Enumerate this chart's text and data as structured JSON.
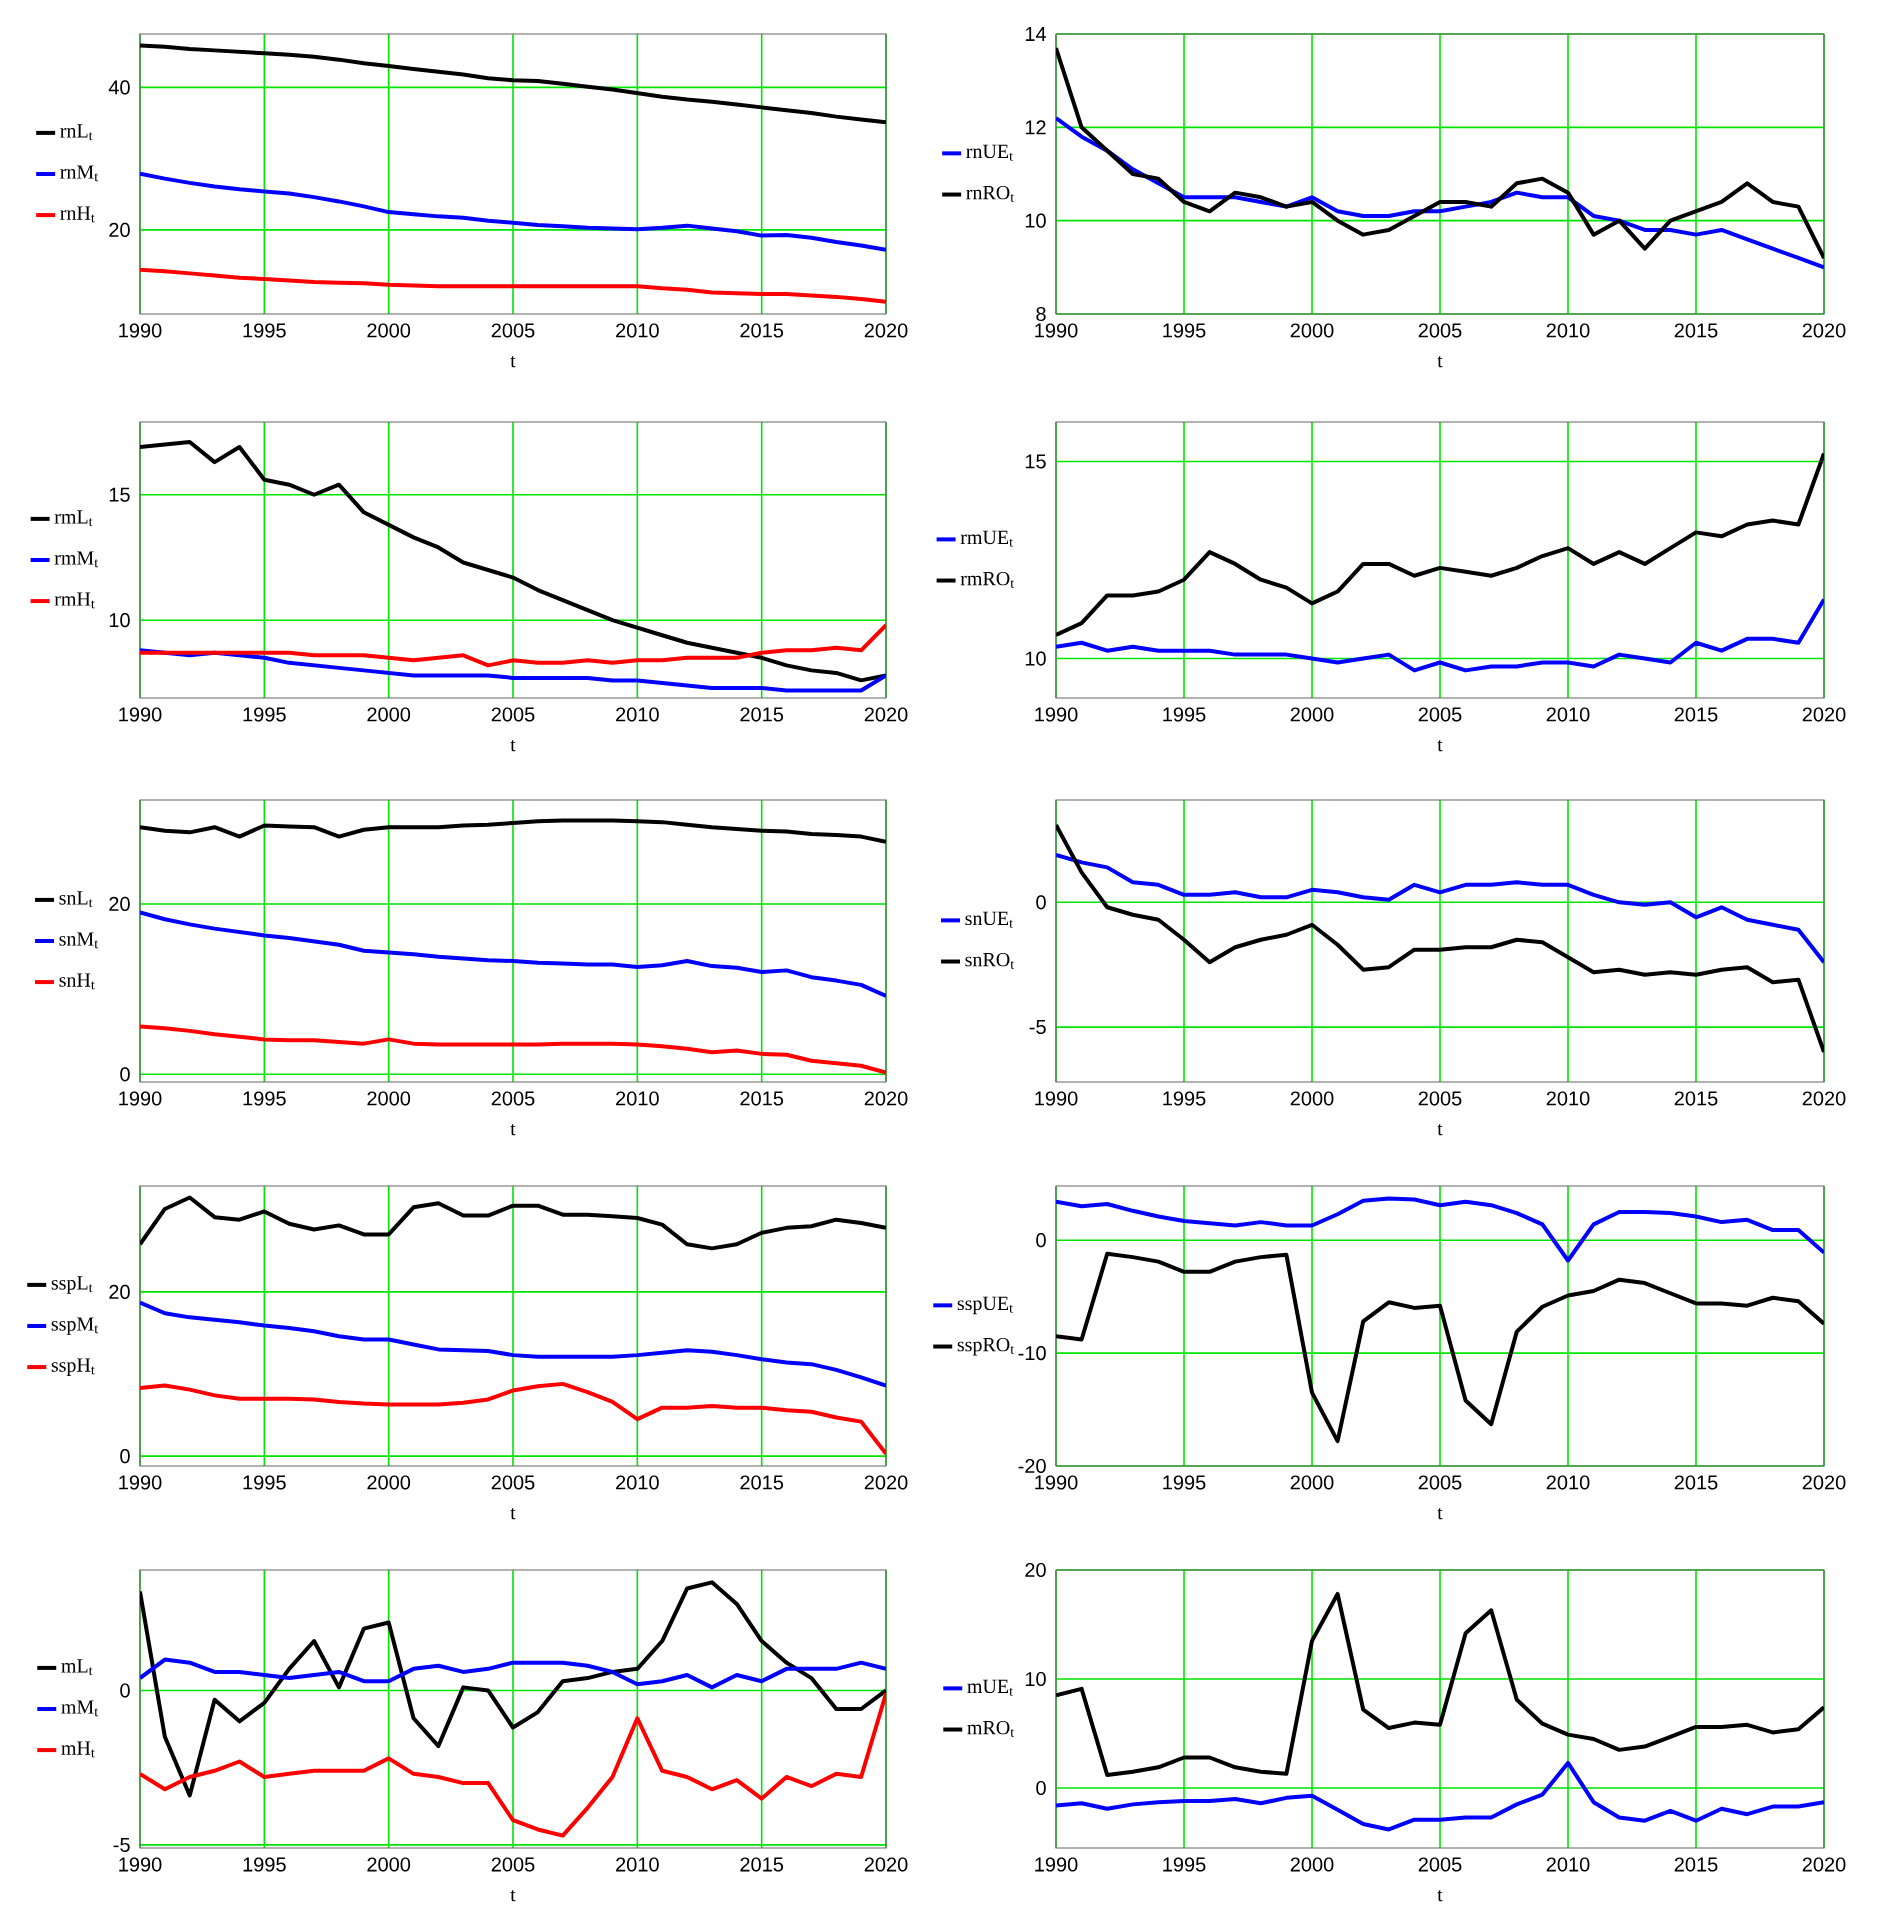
{
  "chart_data": [
    {
      "type": "line",
      "x": [
        1990,
        1991,
        1992,
        1993,
        1994,
        1995,
        1996,
        1997,
        1998,
        1999,
        2000,
        2001,
        2002,
        2003,
        2004,
        2005,
        2006,
        2007,
        2008,
        2009,
        2010,
        2011,
        2012,
        2013,
        2014,
        2015,
        2016,
        2017,
        2018,
        2019,
        2020
      ],
      "xlim": [
        1990,
        2020
      ],
      "xticks": [
        1990,
        1995,
        2000,
        2005,
        2010,
        2015,
        2020
      ],
      "ylim": [
        8.2,
        47.5
      ],
      "yticks": [
        20,
        40
      ],
      "xlabel": "t",
      "grid": true,
      "legend": "left",
      "series": [
        {
          "name": "rnL$_{t}$",
          "color": "#000000",
          "values": [
            45.9,
            45.7,
            45.4,
            45.2,
            45.0,
            44.8,
            44.6,
            44.3,
            43.9,
            43.4,
            43.0,
            42.6,
            42.2,
            41.8,
            41.3,
            41.0,
            40.9,
            40.5,
            40.1,
            39.7,
            39.2,
            38.7,
            38.3,
            38.0,
            37.6,
            37.2,
            36.8,
            36.4,
            35.9,
            35.5,
            35.1
          ]
        },
        {
          "name": "rnM$_{t}$",
          "color": "#0000ff",
          "values": [
            27.9,
            27.2,
            26.6,
            26.1,
            25.7,
            25.4,
            25.1,
            24.6,
            24.0,
            23.3,
            22.5,
            22.2,
            21.9,
            21.7,
            21.3,
            21.0,
            20.7,
            20.5,
            20.3,
            20.2,
            20.1,
            20.3,
            20.6,
            20.2,
            19.8,
            19.2,
            19.3,
            18.9,
            18.3,
            17.8,
            17.2
          ]
        },
        {
          "name": "rnH$_{t}$",
          "color": "#ff0000",
          "values": [
            14.4,
            14.2,
            13.9,
            13.6,
            13.3,
            13.1,
            12.9,
            12.7,
            12.6,
            12.5,
            12.3,
            12.2,
            12.1,
            12.1,
            12.1,
            12.1,
            12.1,
            12.1,
            12.1,
            12.1,
            12.1,
            11.8,
            11.6,
            11.2,
            11.1,
            11.0,
            11.0,
            10.8,
            10.6,
            10.3,
            9.9
          ]
        }
      ]
    },
    {
      "type": "line",
      "x": [
        1990,
        1991,
        1992,
        1993,
        1994,
        1995,
        1996,
        1997,
        1998,
        1999,
        2000,
        2001,
        2002,
        2003,
        2004,
        2005,
        2006,
        2007,
        2008,
        2009,
        2010,
        2011,
        2012,
        2013,
        2014,
        2015,
        2016,
        2017,
        2018,
        2019,
        2020
      ],
      "xlim": [
        1990,
        2020
      ],
      "xticks": [
        1990,
        1995,
        2000,
        2005,
        2010,
        2015,
        2020
      ],
      "ylim": [
        8,
        14
      ],
      "yticks": [
        8,
        10,
        12,
        14
      ],
      "xlabel": "t",
      "grid": true,
      "legend": "left",
      "series": [
        {
          "name": "rnUE$_{t}$",
          "color": "#0000ff",
          "values": [
            12.2,
            11.8,
            11.5,
            11.1,
            10.8,
            10.5,
            10.5,
            10.5,
            10.4,
            10.3,
            10.5,
            10.2,
            10.1,
            10.1,
            10.2,
            10.2,
            10.3,
            10.4,
            10.6,
            10.5,
            10.5,
            10.1,
            10.0,
            9.8,
            9.8,
            9.7,
            9.8,
            9.6,
            9.4,
            9.2,
            9.0
          ]
        },
        {
          "name": "rnRO$_{t}$",
          "color": "#000000",
          "values": [
            13.7,
            12.0,
            11.5,
            11.0,
            10.9,
            10.4,
            10.2,
            10.6,
            10.5,
            10.3,
            10.4,
            10.0,
            9.7,
            9.8,
            10.1,
            10.4,
            10.4,
            10.3,
            10.8,
            10.9,
            10.6,
            9.7,
            10.0,
            9.4,
            10.0,
            10.2,
            10.4,
            10.8,
            10.4,
            10.3,
            9.2
          ]
        }
      ]
    },
    {
      "type": "line",
      "x": [
        1990,
        1991,
        1992,
        1993,
        1994,
        1995,
        1996,
        1997,
        1998,
        1999,
        2000,
        2001,
        2002,
        2003,
        2004,
        2005,
        2006,
        2007,
        2008,
        2009,
        2010,
        2011,
        2012,
        2013,
        2014,
        2015,
        2016,
        2017,
        2018,
        2019,
        2020
      ],
      "xlim": [
        1990,
        2020
      ],
      "xticks": [
        1990,
        1995,
        2000,
        2005,
        2010,
        2015,
        2020
      ],
      "ylim": [
        6.9,
        17.9
      ],
      "yticks": [
        10,
        15
      ],
      "xlabel": "t",
      "grid": true,
      "legend": "left",
      "series": [
        {
          "name": "rmL$_{t}$",
          "color": "#000000",
          "values": [
            16.9,
            17.0,
            17.1,
            16.3,
            16.9,
            15.6,
            15.4,
            15.0,
            15.4,
            14.3,
            13.8,
            13.3,
            12.9,
            12.3,
            12.0,
            11.7,
            11.2,
            10.8,
            10.4,
            10.0,
            9.7,
            9.4,
            9.1,
            8.9,
            8.7,
            8.5,
            8.2,
            8.0,
            7.9,
            7.6,
            7.8
          ]
        },
        {
          "name": "rmM$_{t}$",
          "color": "#0000ff",
          "values": [
            8.8,
            8.7,
            8.6,
            8.7,
            8.6,
            8.5,
            8.3,
            8.2,
            8.1,
            8.0,
            7.9,
            7.8,
            7.8,
            7.8,
            7.8,
            7.7,
            7.7,
            7.7,
            7.7,
            7.6,
            7.6,
            7.5,
            7.4,
            7.3,
            7.3,
            7.3,
            7.2,
            7.2,
            7.2,
            7.2,
            7.8
          ]
        },
        {
          "name": "rmH$_{t}$",
          "color": "#ff0000",
          "values": [
            8.7,
            8.7,
            8.7,
            8.7,
            8.7,
            8.7,
            8.7,
            8.6,
            8.6,
            8.6,
            8.5,
            8.4,
            8.5,
            8.6,
            8.2,
            8.4,
            8.3,
            8.3,
            8.4,
            8.3,
            8.4,
            8.4,
            8.5,
            8.5,
            8.5,
            8.7,
            8.8,
            8.8,
            8.9,
            8.8,
            9.8
          ]
        }
      ]
    },
    {
      "type": "line",
      "x": [
        1990,
        1991,
        1992,
        1993,
        1994,
        1995,
        1996,
        1997,
        1998,
        1999,
        2000,
        2001,
        2002,
        2003,
        2004,
        2005,
        2006,
        2007,
        2008,
        2009,
        2010,
        2011,
        2012,
        2013,
        2014,
        2015,
        2016,
        2017,
        2018,
        2019,
        2020
      ],
      "xlim": [
        1990,
        2020
      ],
      "xticks": [
        1990,
        1995,
        2000,
        2005,
        2010,
        2015,
        2020
      ],
      "ylim": [
        9,
        16
      ],
      "yticks": [
        10,
        15
      ],
      "xlabel": "t",
      "grid": true,
      "legend": "left",
      "series": [
        {
          "name": "rmUE$_{t}$",
          "color": "#0000ff",
          "values": [
            10.3,
            10.4,
            10.2,
            10.3,
            10.2,
            10.2,
            10.2,
            10.1,
            10.1,
            10.1,
            10.0,
            9.9,
            10.0,
            10.1,
            9.7,
            9.9,
            9.7,
            9.8,
            9.8,
            9.9,
            9.9,
            9.8,
            10.1,
            10.0,
            9.9,
            10.4,
            10.2,
            10.5,
            10.5,
            10.4,
            11.5
          ]
        },
        {
          "name": "rmRO$_{t}$",
          "color": "#000000",
          "values": [
            10.6,
            10.9,
            11.6,
            11.6,
            11.7,
            12.0,
            12.7,
            12.4,
            12.0,
            11.8,
            11.4,
            11.7,
            12.4,
            12.4,
            12.1,
            12.3,
            12.2,
            12.1,
            12.3,
            12.6,
            12.8,
            12.4,
            12.7,
            12.4,
            12.8,
            13.2,
            13.1,
            13.4,
            13.5,
            13.4,
            15.2
          ]
        }
      ]
    },
    {
      "type": "line",
      "x": [
        1990,
        1991,
        1992,
        1993,
        1994,
        1995,
        1996,
        1997,
        1998,
        1999,
        2000,
        2001,
        2002,
        2003,
        2004,
        2005,
        2006,
        2007,
        2008,
        2009,
        2010,
        2011,
        2012,
        2013,
        2014,
        2015,
        2016,
        2017,
        2018,
        2019,
        2020
      ],
      "xlim": [
        1990,
        2020
      ],
      "xticks": [
        1990,
        1995,
        2000,
        2005,
        2010,
        2015,
        2020
      ],
      "ylim": [
        -0.9,
        32.2
      ],
      "yticks": [
        0,
        20
      ],
      "xlabel": "t",
      "grid": true,
      "legend": "left",
      "series": [
        {
          "name": "snL$_{t}$",
          "color": "#000000",
          "values": [
            29.0,
            28.6,
            28.4,
            29.0,
            27.9,
            29.2,
            29.1,
            29.0,
            27.9,
            28.7,
            29.0,
            29.0,
            29.0,
            29.2,
            29.3,
            29.5,
            29.7,
            29.8,
            29.8,
            29.8,
            29.7,
            29.6,
            29.3,
            29.0,
            28.8,
            28.6,
            28.5,
            28.2,
            28.1,
            27.9,
            27.3
          ]
        },
        {
          "name": "snM$_{t}$",
          "color": "#0000ff",
          "values": [
            19.0,
            18.2,
            17.6,
            17.1,
            16.7,
            16.3,
            16.0,
            15.6,
            15.2,
            14.5,
            14.3,
            14.1,
            13.8,
            13.6,
            13.4,
            13.3,
            13.1,
            13.0,
            12.9,
            12.9,
            12.6,
            12.8,
            13.3,
            12.7,
            12.5,
            12.0,
            12.2,
            11.4,
            11.0,
            10.5,
            9.2
          ]
        },
        {
          "name": "snH$_{t}$",
          "color": "#ff0000",
          "values": [
            5.6,
            5.4,
            5.1,
            4.7,
            4.4,
            4.1,
            4.0,
            4.0,
            3.8,
            3.6,
            4.1,
            3.6,
            3.5,
            3.5,
            3.5,
            3.5,
            3.5,
            3.6,
            3.6,
            3.6,
            3.5,
            3.3,
            3.0,
            2.6,
            2.8,
            2.4,
            2.3,
            1.6,
            1.3,
            1.0,
            0.2
          ]
        }
      ]
    },
    {
      "type": "line",
      "x": [
        1990,
        1991,
        1992,
        1993,
        1994,
        1995,
        1996,
        1997,
        1998,
        1999,
        2000,
        2001,
        2002,
        2003,
        2004,
        2005,
        2006,
        2007,
        2008,
        2009,
        2010,
        2011,
        2012,
        2013,
        2014,
        2015,
        2016,
        2017,
        2018,
        2019,
        2020
      ],
      "xlim": [
        1990,
        2020
      ],
      "xticks": [
        1990,
        1995,
        2000,
        2005,
        2010,
        2015,
        2020
      ],
      "ylim": [
        -7.2,
        4.1
      ],
      "yticks": [
        -5,
        0
      ],
      "xlabel": "t",
      "grid": true,
      "legend": "left",
      "series": [
        {
          "name": "snUE$_{t}$",
          "color": "#0000ff",
          "values": [
            1.9,
            1.6,
            1.4,
            0.8,
            0.7,
            0.3,
            0.3,
            0.4,
            0.2,
            0.2,
            0.5,
            0.4,
            0.2,
            0.1,
            0.7,
            0.4,
            0.7,
            0.7,
            0.8,
            0.7,
            0.7,
            0.3,
            0.0,
            -0.1,
            0.0,
            -0.6,
            -0.2,
            -0.7,
            -0.9,
            -1.1,
            -2.4
          ]
        },
        {
          "name": "snRO$_{t}$",
          "color": "#000000",
          "values": [
            3.1,
            1.2,
            -0.2,
            -0.5,
            -0.7,
            -1.5,
            -2.4,
            -1.8,
            -1.5,
            -1.3,
            -0.9,
            -1.7,
            -2.7,
            -2.6,
            -1.9,
            -1.9,
            -1.8,
            -1.8,
            -1.5,
            -1.6,
            -2.2,
            -2.8,
            -2.7,
            -2.9,
            -2.8,
            -2.9,
            -2.7,
            -2.6,
            -3.2,
            -3.1,
            -6.0
          ]
        }
      ]
    },
    {
      "type": "line",
      "x": [
        1990,
        1991,
        1992,
        1993,
        1994,
        1995,
        1996,
        1997,
        1998,
        1999,
        2000,
        2001,
        2002,
        2003,
        2004,
        2005,
        2006,
        2007,
        2008,
        2009,
        2010,
        2011,
        2012,
        2013,
        2014,
        2015,
        2016,
        2017,
        2018,
        2019,
        2020
      ],
      "xlim": [
        1990,
        2020
      ],
      "xticks": [
        1990,
        1995,
        2000,
        2005,
        2010,
        2015,
        2020
      ],
      "ylim": [
        -1.2,
        32.9
      ],
      "yticks": [
        0,
        20
      ],
      "xlabel": "t",
      "grid": true,
      "legend": "left",
      "series": [
        {
          "name": "sspL$_{t}$",
          "color": "#000000",
          "values": [
            25.8,
            30.1,
            31.5,
            29.1,
            28.8,
            29.8,
            28.3,
            27.6,
            28.1,
            27.0,
            27.0,
            30.3,
            30.8,
            29.3,
            29.3,
            30.5,
            30.5,
            29.4,
            29.4,
            29.2,
            29.0,
            28.2,
            25.8,
            25.3,
            25.8,
            27.2,
            27.8,
            28.0,
            28.8,
            28.4,
            27.8
          ]
        },
        {
          "name": "sspM$_{t}$",
          "color": "#0000ff",
          "values": [
            18.7,
            17.4,
            16.9,
            16.6,
            16.3,
            15.9,
            15.6,
            15.2,
            14.6,
            14.2,
            14.2,
            13.6,
            13.0,
            12.9,
            12.8,
            12.3,
            12.1,
            12.1,
            12.1,
            12.1,
            12.3,
            12.6,
            12.9,
            12.7,
            12.3,
            11.8,
            11.4,
            11.2,
            10.5,
            9.6,
            8.6
          ]
        },
        {
          "name": "sspH$_{t}$",
          "color": "#ff0000",
          "values": [
            8.3,
            8.6,
            8.1,
            7.4,
            7.0,
            7.0,
            7.0,
            6.9,
            6.6,
            6.4,
            6.3,
            6.3,
            6.3,
            6.5,
            6.9,
            8.0,
            8.5,
            8.8,
            7.8,
            6.6,
            4.5,
            5.9,
            5.9,
            6.1,
            5.9,
            5.9,
            5.6,
            5.4,
            4.7,
            4.2,
            0.3
          ]
        }
      ]
    },
    {
      "type": "line",
      "x": [
        1990,
        1991,
        1992,
        1993,
        1994,
        1995,
        1996,
        1997,
        1998,
        1999,
        2000,
        2001,
        2002,
        2003,
        2004,
        2005,
        2006,
        2007,
        2008,
        2009,
        2010,
        2011,
        2012,
        2013,
        2014,
        2015,
        2016,
        2017,
        2018,
        2019,
        2020
      ],
      "xlim": [
        1990,
        2020
      ],
      "xticks": [
        1990,
        1995,
        2000,
        2005,
        2010,
        2015,
        2020
      ],
      "ylim": [
        -20,
        4.8
      ],
      "yticks": [
        -20,
        -10,
        0
      ],
      "xlabel": "t",
      "grid": true,
      "legend": "left",
      "series": [
        {
          "name": "sspUE$_{t}$",
          "color": "#0000ff",
          "values": [
            3.4,
            3.0,
            3.2,
            2.6,
            2.1,
            1.7,
            1.5,
            1.3,
            1.6,
            1.3,
            1.3,
            2.3,
            3.5,
            3.7,
            3.6,
            3.1,
            3.4,
            3.1,
            2.4,
            1.4,
            -1.8,
            1.4,
            2.5,
            2.5,
            2.4,
            2.1,
            1.6,
            1.8,
            0.9,
            0.9,
            -1.1
          ]
        },
        {
          "name": "sspRO$_{t}$",
          "color": "#000000",
          "values": [
            -8.5,
            -8.8,
            -1.2,
            -1.5,
            -1.9,
            -2.8,
            -2.8,
            -1.9,
            -1.5,
            -1.3,
            -13.5,
            -17.8,
            -7.2,
            -5.5,
            -6.0,
            -5.8,
            -14.2,
            -16.3,
            -8.1,
            -5.9,
            -4.9,
            -4.5,
            -3.5,
            -3.8,
            -4.7,
            -5.6,
            -5.6,
            -5.8,
            -5.1,
            -5.4,
            -7.4
          ]
        }
      ]
    },
    {
      "type": "line",
      "x": [
        1990,
        1991,
        1992,
        1993,
        1994,
        1995,
        1996,
        1997,
        1998,
        1999,
        2000,
        2001,
        2002,
        2003,
        2004,
        2005,
        2006,
        2007,
        2008,
        2009,
        2010,
        2011,
        2012,
        2013,
        2014,
        2015,
        2016,
        2017,
        2018,
        2019,
        2020
      ],
      "xlim": [
        1990,
        2020
      ],
      "xticks": [
        1990,
        1995,
        2000,
        2005,
        2010,
        2015,
        2020
      ],
      "ylim": [
        -5.1,
        3.9
      ],
      "yticks": [
        -5,
        0
      ],
      "xlabel": "t",
      "grid": true,
      "legend": "left",
      "series": [
        {
          "name": "mL$_{t}$",
          "color": "#000000",
          "values": [
            3.2,
            -1.5,
            -3.4,
            -0.3,
            -1.0,
            -0.4,
            0.7,
            1.6,
            0.1,
            2.0,
            2.2,
            -0.9,
            -1.8,
            0.1,
            0.0,
            -1.2,
            -0.7,
            0.3,
            0.4,
            0.6,
            0.7,
            1.6,
            3.3,
            3.5,
            2.8,
            1.6,
            0.9,
            0.4,
            -0.6,
            -0.6,
            0.0
          ]
        },
        {
          "name": "mM$_{t}$",
          "color": "#0000ff",
          "values": [
            0.4,
            1.0,
            0.9,
            0.6,
            0.6,
            0.5,
            0.4,
            0.5,
            0.6,
            0.3,
            0.3,
            0.7,
            0.8,
            0.6,
            0.7,
            0.9,
            0.9,
            0.9,
            0.8,
            0.6,
            0.2,
            0.3,
            0.5,
            0.1,
            0.5,
            0.3,
            0.7,
            0.7,
            0.7,
            0.9,
            0.7
          ]
        },
        {
          "name": "mH$_{t}$",
          "color": "#ff0000",
          "values": [
            -2.7,
            -3.2,
            -2.8,
            -2.6,
            -2.3,
            -2.8,
            -2.7,
            -2.6,
            -2.6,
            -2.6,
            -2.2,
            -2.7,
            -2.8,
            -3.0,
            -3.0,
            -4.2,
            -4.5,
            -4.7,
            -3.8,
            -2.8,
            -0.9,
            -2.6,
            -2.8,
            -3.2,
            -2.9,
            -3.5,
            -2.8,
            -3.1,
            -2.7,
            -2.8,
            -0.1
          ]
        }
      ]
    },
    {
      "type": "line",
      "x": [
        1990,
        1991,
        1992,
        1993,
        1994,
        1995,
        1996,
        1997,
        1998,
        1999,
        2000,
        2001,
        2002,
        2003,
        2004,
        2005,
        2006,
        2007,
        2008,
        2009,
        2010,
        2011,
        2012,
        2013,
        2014,
        2015,
        2016,
        2017,
        2018,
        2019,
        2020
      ],
      "xlim": [
        1990,
        2020
      ],
      "xticks": [
        1990,
        1995,
        2000,
        2005,
        2010,
        2015,
        2020
      ],
      "ylim": [
        -5.5,
        20
      ],
      "yticks": [
        0,
        10,
        20
      ],
      "xlabel": "t",
      "grid": true,
      "legend": "left",
      "series": [
        {
          "name": "mUE$_{t}$",
          "color": "#0000ff",
          "values": [
            -1.6,
            -1.4,
            -1.9,
            -1.5,
            -1.3,
            -1.2,
            -1.2,
            -1.0,
            -1.4,
            -0.9,
            -0.7,
            -2.0,
            -3.3,
            -3.8,
            -2.9,
            -2.9,
            -2.7,
            -2.7,
            -1.5,
            -0.6,
            2.3,
            -1.3,
            -2.7,
            -3.0,
            -2.1,
            -3.0,
            -1.9,
            -2.4,
            -1.7,
            -1.7,
            -1.3
          ]
        },
        {
          "name": "mRO$_{t}$",
          "color": "#000000",
          "values": [
            8.5,
            9.1,
            1.2,
            1.5,
            1.9,
            2.8,
            2.8,
            1.9,
            1.5,
            1.3,
            13.5,
            17.8,
            7.2,
            5.5,
            6.0,
            5.8,
            14.2,
            16.3,
            8.1,
            5.9,
            4.9,
            4.5,
            3.5,
            3.8,
            4.7,
            5.6,
            5.6,
            5.8,
            5.1,
            5.4,
            7.4
          ]
        }
      ]
    }
  ]
}
